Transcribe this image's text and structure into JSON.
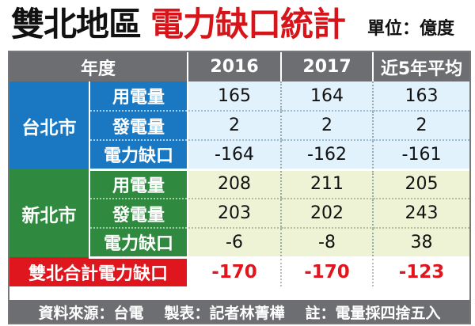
{
  "title": {
    "black": "雙北地區",
    "red": "電力缺口統計",
    "unit": "單位：億度"
  },
  "header": {
    "col0": "年度",
    "col1": "2016",
    "col2": "2017",
    "col3": "近5年平均"
  },
  "taipei": {
    "name": "台北市",
    "rows": [
      {
        "label": "用電量",
        "v2016": "165",
        "v2017": "164",
        "avg": "163"
      },
      {
        "label": "發電量",
        "v2016": "2",
        "v2017": "2",
        "avg": "2"
      },
      {
        "label": "電力缺口",
        "v2016": "-164",
        "v2017": "-162",
        "avg": "-161"
      }
    ]
  },
  "newtaipei": {
    "name": "新北市",
    "rows": [
      {
        "label": "用電量",
        "v2016": "208",
        "v2017": "211",
        "avg": "205"
      },
      {
        "label": "發電量",
        "v2016": "203",
        "v2017": "202",
        "avg": "243"
      },
      {
        "label": "電力缺口",
        "v2016": "-6",
        "v2017": "-8",
        "avg": "38"
      }
    ]
  },
  "total": {
    "label": "雙北合計電力缺口",
    "v2016": "-170",
    "v2017": "-170",
    "avg": "-123"
  },
  "footer": {
    "source": "資料來源：台電",
    "maker": "製表：記者林菁樺",
    "note": "註：電量採四捨五入"
  },
  "colors": {
    "title_red": "#d7141a",
    "header_gray": "#6d6e71",
    "taipei_blue": "#1a77c1",
    "taipei_cell": "#e1f2fc",
    "newtaipei_green": "#2f8a3f",
    "newtaipei_cell": "#eef3d5",
    "total_red": "#e0161e"
  }
}
